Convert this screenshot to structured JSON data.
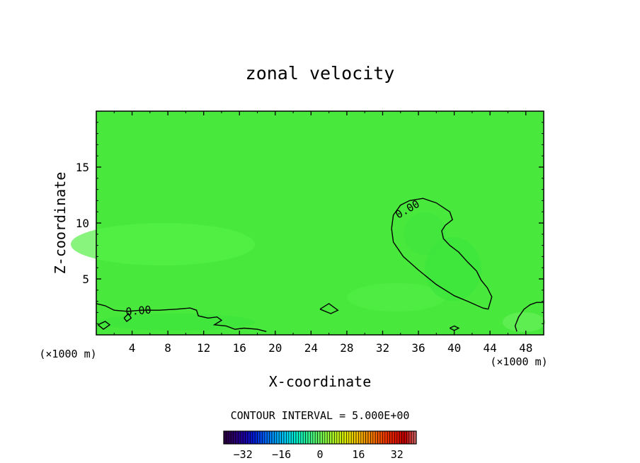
{
  "chart_data": {
    "type": "contour",
    "title": "zonal velocity",
    "xlabel": "X-coordinate",
    "ylabel": "Z-coordinate",
    "x_unit_left": "(×1000 m)",
    "x_unit_right": "(×1000 m)",
    "xlim": [
      0,
      50
    ],
    "ylim": [
      0,
      20
    ],
    "x_ticks": [
      4,
      8,
      12,
      16,
      20,
      24,
      28,
      32,
      36,
      40,
      44,
      48
    ],
    "y_ticks": [
      5,
      10,
      15
    ],
    "contour_labels": [
      "0.00",
      "0.00"
    ],
    "contour_zero_line": {
      "upper_lobe": [
        [
          33.0,
          9.5
        ],
        [
          33.2,
          10.7
        ],
        [
          34.0,
          11.6
        ],
        [
          35.0,
          12.0
        ],
        [
          36.5,
          12.2
        ],
        [
          38.0,
          11.8
        ],
        [
          39.5,
          11.0
        ],
        [
          39.8,
          10.3
        ],
        [
          39.0,
          9.8
        ],
        [
          38.6,
          9.3
        ],
        [
          38.8,
          8.6
        ],
        [
          39.5,
          8.0
        ],
        [
          40.5,
          7.4
        ],
        [
          41.5,
          6.5
        ],
        [
          42.5,
          5.7
        ],
        [
          43.0,
          4.9
        ],
        [
          43.7,
          4.2
        ],
        [
          44.2,
          3.4
        ],
        [
          43.8,
          2.3
        ],
        [
          43.2,
          2.4
        ],
        [
          41.5,
          3.0
        ],
        [
          40.0,
          3.5
        ],
        [
          38.0,
          4.5
        ],
        [
          36.0,
          5.8
        ],
        [
          34.3,
          7.0
        ],
        [
          33.2,
          8.3
        ],
        [
          33.0,
          9.5
        ]
      ],
      "bottom_left": [
        [
          0.0,
          2.8
        ],
        [
          1.0,
          2.6
        ],
        [
          2.0,
          2.2
        ],
        [
          3.5,
          2.1
        ],
        [
          5.0,
          2.2
        ],
        [
          7.0,
          2.2
        ],
        [
          9.0,
          2.3
        ],
        [
          10.5,
          2.4
        ],
        [
          11.2,
          2.2
        ],
        [
          11.4,
          1.7
        ],
        [
          12.5,
          1.5
        ],
        [
          13.5,
          1.6
        ],
        [
          14.0,
          1.3
        ],
        [
          13.2,
          0.9
        ],
        [
          14.5,
          0.8
        ],
        [
          15.5,
          0.5
        ],
        [
          16.5,
          0.6
        ],
        [
          18.0,
          0.5
        ],
        [
          19.0,
          0.3
        ]
      ],
      "bottom_right": [
        [
          47.0,
          0.3
        ],
        [
          46.8,
          0.8
        ],
        [
          47.2,
          1.6
        ],
        [
          47.8,
          2.3
        ],
        [
          48.5,
          2.7
        ],
        [
          49.2,
          2.9
        ],
        [
          50.0,
          2.9
        ]
      ],
      "small_loops": [
        [
          [
            0.2,
            0.9
          ],
          [
            1.0,
            1.2
          ],
          [
            1.5,
            0.9
          ],
          [
            0.8,
            0.5
          ],
          [
            0.2,
            0.9
          ]
        ],
        [
          [
            3.1,
            1.5
          ],
          [
            3.6,
            1.9
          ],
          [
            3.9,
            1.5
          ],
          [
            3.4,
            1.2
          ],
          [
            3.1,
            1.5
          ]
        ],
        [
          [
            25.0,
            2.3
          ],
          [
            26.0,
            2.8
          ],
          [
            27.0,
            2.2
          ],
          [
            26.2,
            1.9
          ],
          [
            25.0,
            2.3
          ]
        ],
        [
          [
            39.5,
            0.6
          ],
          [
            40.0,
            0.8
          ],
          [
            40.5,
            0.6
          ],
          [
            40.0,
            0.4
          ],
          [
            39.5,
            0.6
          ]
        ]
      ]
    },
    "colorbar": {
      "title": "CONTOUR INTERVAL = 5.000E+00",
      "ticks": [
        -32,
        -16,
        0,
        16,
        32
      ],
      "tick_labels": [
        "−32",
        "−16",
        "0",
        "16",
        "32"
      ],
      "range": [
        -40,
        40
      ],
      "colors": [
        "#2a0040",
        "#2a0070",
        "#1a00a8",
        "#0020d8",
        "#0060f0",
        "#0098f0",
        "#00c8f0",
        "#00e8d0",
        "#20f0a0",
        "#50f070",
        "#80f040",
        "#b0f020",
        "#d8e800",
        "#f0c800",
        "#f09800",
        "#f06800",
        "#f03800",
        "#e01800",
        "#c00000",
        "#d06060"
      ]
    },
    "field_colors": {
      "base": "#48e93c",
      "lighter_regions": "#5af04c",
      "darker_regions": "#38e03a"
    }
  }
}
